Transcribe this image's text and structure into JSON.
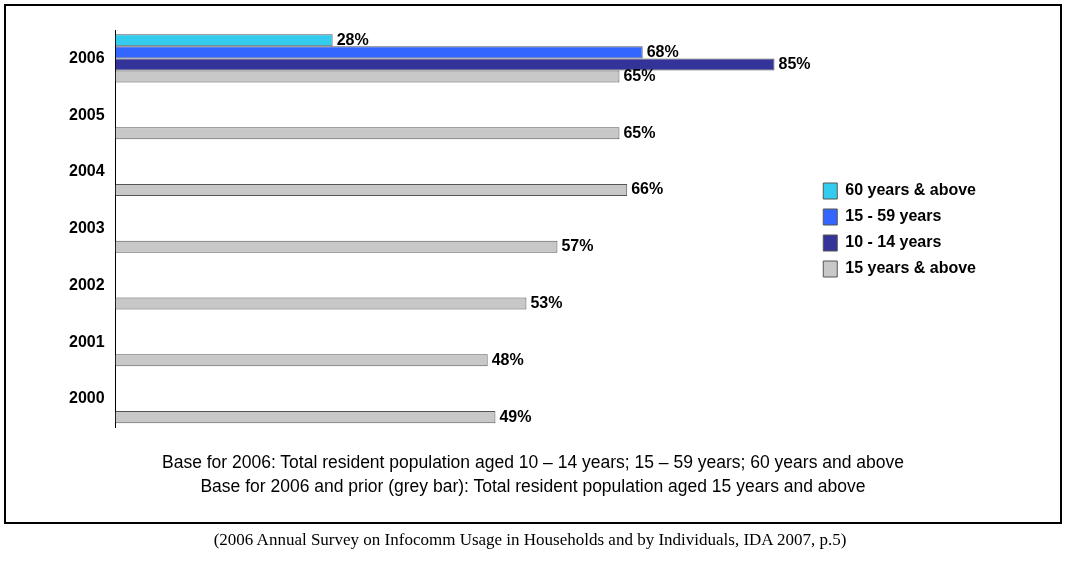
{
  "chart_data": {
    "type": "bar",
    "orientation": "horizontal",
    "legend": "right",
    "grid": false,
    "categories": [
      "2006",
      "2005",
      "2004",
      "2003",
      "2002",
      "2001",
      "2000"
    ],
    "series": [
      {
        "name": "60 years & above",
        "color": "#33ccee",
        "values": [
          28,
          null,
          null,
          null,
          null,
          null,
          null
        ],
        "value_labels": [
          "28%",
          null,
          null,
          null,
          null,
          null,
          null
        ]
      },
      {
        "name": "15 - 59 years",
        "color": "#3366ff",
        "values": [
          68,
          null,
          null,
          null,
          null,
          null,
          null
        ],
        "value_labels": [
          "68%",
          null,
          null,
          null,
          null,
          null,
          null
        ]
      },
      {
        "name": "10 - 14 years",
        "color": "#333399",
        "values": [
          85,
          null,
          null,
          null,
          null,
          null,
          null
        ],
        "value_labels": [
          "85%",
          null,
          null,
          null,
          null,
          null,
          null
        ]
      },
      {
        "name": "15 years & above",
        "color": "#c8c8c8",
        "values": [
          65,
          65,
          66,
          57,
          53,
          48,
          49
        ],
        "value_labels": [
          "65%",
          "65%",
          "66%",
          "57%",
          "53%",
          "48%",
          "49%"
        ]
      }
    ],
    "annotations": [
      "Base for 2006: Total resident population aged 10 – 14 years; 15 – 59 years; 60 years and above",
      "Base for 2006 and prior (grey bar): Total resident population aged 15 years and above",
      "(2006 Annual Survey on Infocomm Usage in Households and by Individuals, IDA 2007, p.5)"
    ]
  }
}
